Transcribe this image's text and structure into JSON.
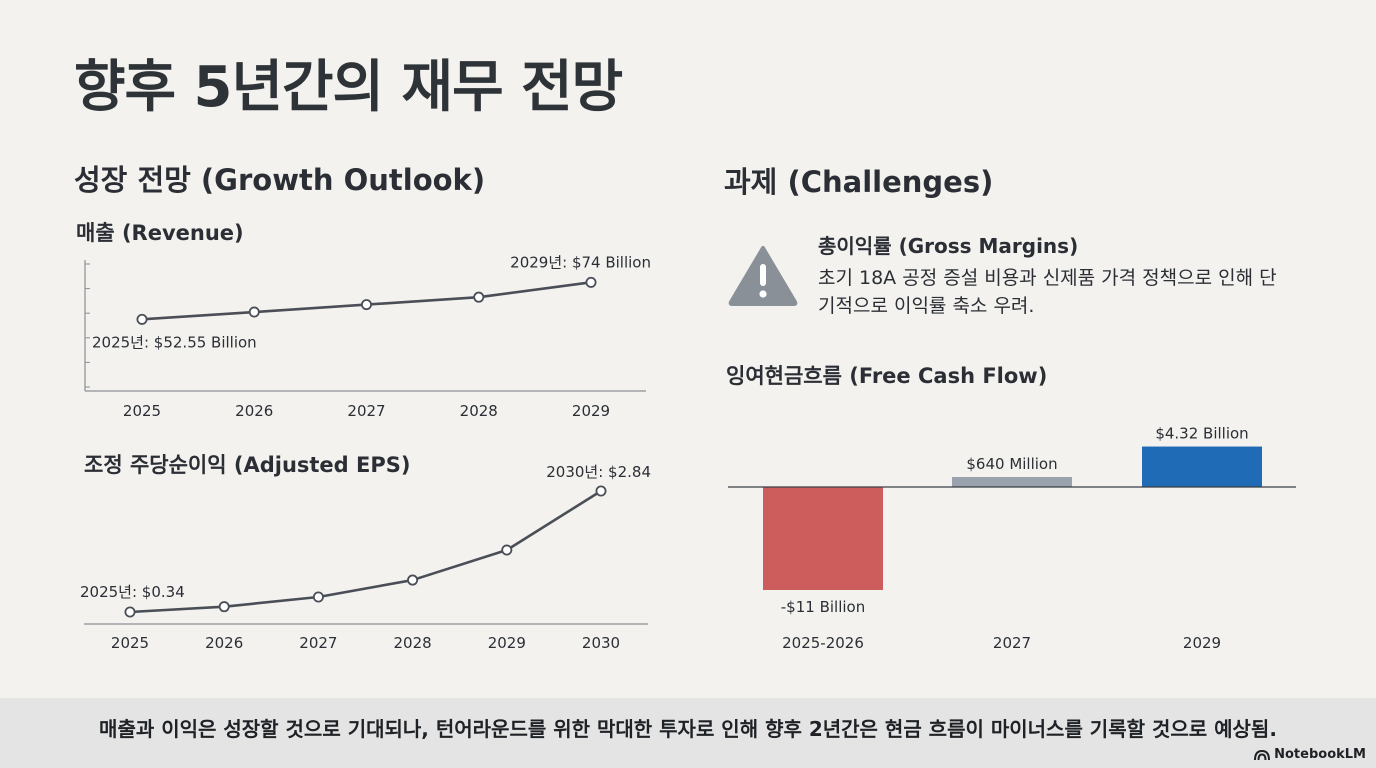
{
  "page": {
    "title": "향후 5년간의 재무 전망",
    "growth_heading": "성장 전망 (Growth Outlook)",
    "challenges_heading": "과제 (Challenges)",
    "footer_text": "매출과 이익은 성장할 것으로 기대되나, 턴어라운드를 위한 막대한 투자로 인해 향후 2년간은 현금 흐름이 마이너스를 기록할 것으로 예상됨.",
    "brand": "NotebookLM"
  },
  "gross_margins": {
    "title": "총이익률 (Gross Margins)",
    "description": "초기 18A 공정 증설 비용과 신제품 가격 정책으로 인해 단기적으로 이익률 축소 우려.",
    "icon": "warning-icon"
  },
  "colors": {
    "line": "#4a4f57",
    "fcf_negative": "#cd5c5c",
    "fcf_small": "#9aa3ad",
    "fcf_positive": "#1f6bb5"
  },
  "chart_data": [
    {
      "id": "revenue",
      "type": "line",
      "title": "매출 (Revenue)",
      "categories": [
        "2025",
        "2026",
        "2027",
        "2028",
        "2029"
      ],
      "values": [
        52.55,
        56.8,
        61.1,
        65.4,
        74
      ],
      "unit": "Billion USD",
      "ylim": [
        40,
        80
      ],
      "annotations": [
        {
          "index": 0,
          "text": "2025년: $52.55 Billion"
        },
        {
          "index": 4,
          "text": "2029년: $74 Billion"
        }
      ]
    },
    {
      "id": "eps",
      "type": "line",
      "title": "조정 주당순이익 (Adjusted EPS)",
      "categories": [
        "2025",
        "2026",
        "2027",
        "2028",
        "2029",
        "2030"
      ],
      "values": [
        0.34,
        0.45,
        0.65,
        1.0,
        1.62,
        2.84
      ],
      "unit": "USD",
      "ylim": [
        0,
        3.0
      ],
      "annotations": [
        {
          "index": 0,
          "text": "2025년: $0.34"
        },
        {
          "index": 5,
          "text": "2030년: $2.84"
        }
      ]
    },
    {
      "id": "fcf",
      "type": "bar",
      "title": "잉여현금흐름 (Free Cash Flow)",
      "categories": [
        "2025-2026",
        "2027",
        "2029"
      ],
      "values": [
        -11,
        0.64,
        4.32
      ],
      "labels": [
        "-$11 Billion",
        "$640 Million",
        "$4.32 Billion"
      ],
      "unit": "Billion USD"
    }
  ]
}
